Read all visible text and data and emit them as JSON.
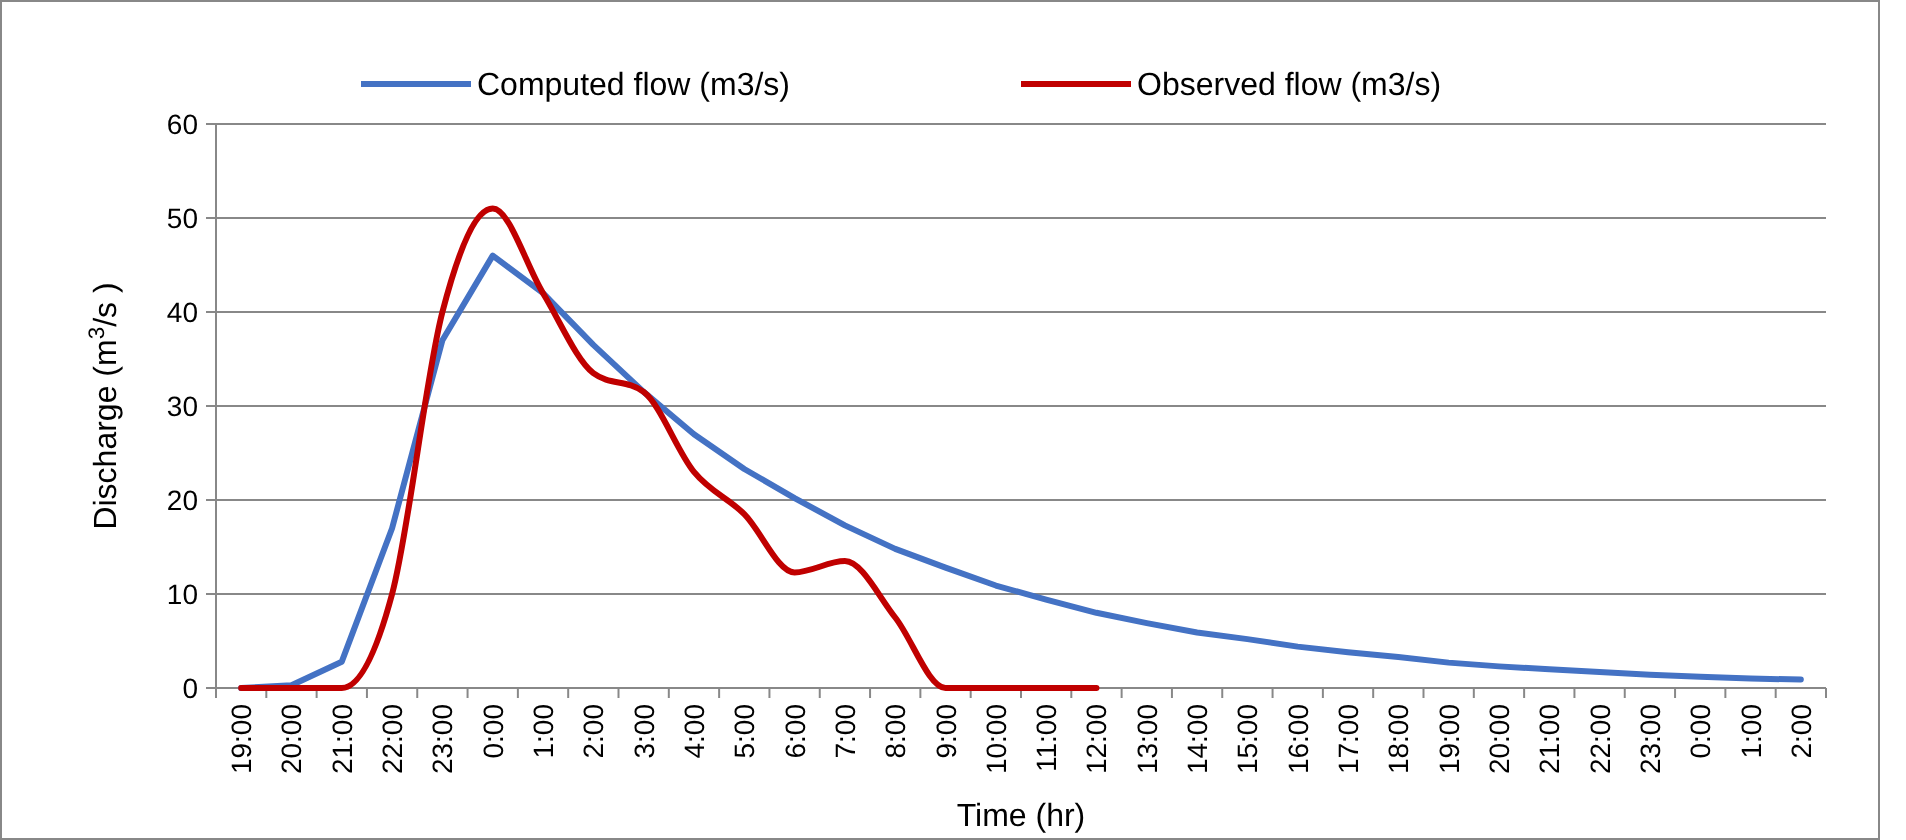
{
  "chart_data": {
    "type": "line",
    "xlabel": "Time  (hr)",
    "ylabel": "Discharge (m$^{3}$/s )",
    "categories": [
      "19:00",
      "20:00",
      "21:00",
      "22:00",
      "23:00",
      "0:00",
      "1:00",
      "2:00",
      "3:00",
      "4:00",
      "5:00",
      "6:00",
      "7:00",
      "8:00",
      "9:00",
      "10:00",
      "11:00",
      "12:00",
      "13:00",
      "14:00",
      "15:00",
      "16:00",
      "17:00",
      "18:00",
      "19:00",
      "20:00",
      "21:00",
      "22:00",
      "23:00",
      "0:00",
      "1:00",
      "2:00"
    ],
    "series": [
      {
        "name": "Computed flow (m3/s)",
        "color": "#4472c4",
        "values": [
          0,
          0.3,
          2.8,
          17,
          37,
          46,
          42,
          36.5,
          31.5,
          27,
          23.3,
          20.2,
          17.3,
          14.8,
          12.8,
          10.9,
          9.4,
          8,
          6.9,
          5.9,
          5.2,
          4.4,
          3.8,
          3.3,
          2.7,
          2.3,
          2,
          1.7,
          1.4,
          1.2,
          1,
          0.9
        ]
      },
      {
        "name": "Observed flow (m3/s)",
        "color": "#c00000",
        "values": [
          0,
          0,
          0,
          10,
          40,
          51,
          42,
          33.5,
          31.5,
          23,
          18.5,
          12.3,
          13.5,
          7.5,
          0,
          0,
          0,
          0,
          null,
          null,
          null,
          null,
          null,
          null,
          null,
          null,
          null,
          null,
          null,
          null,
          null,
          null
        ]
      }
    ],
    "ylim": [
      0,
      60
    ],
    "yticks": [
      0,
      10,
      20,
      30,
      40,
      50,
      60
    ],
    "grid": "y",
    "legend": "top",
    "marker": "none",
    "line_style": "solid"
  }
}
